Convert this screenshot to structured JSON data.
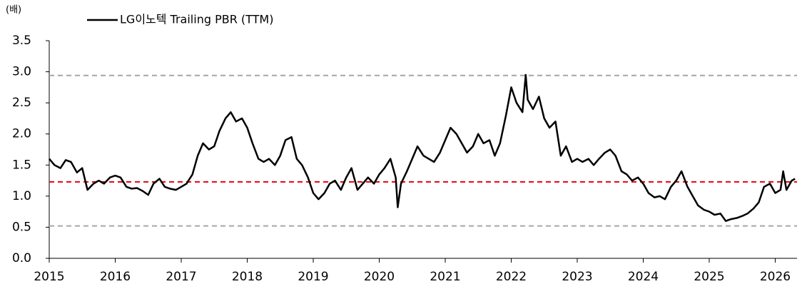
{
  "chart_data": {
    "type": "line",
    "y_label": "(배)",
    "xlim": [
      2015,
      2026.33
    ],
    "xticks": [
      2015,
      2016,
      2017,
      2018,
      2019,
      2020,
      2021,
      2022,
      2023,
      2024,
      2025,
      2026
    ],
    "ylim": [
      0,
      3.5
    ],
    "yticks": [
      {
        "value": 0,
        "label": "0.0"
      },
      0.5,
      {
        "value": 1,
        "label": "1.0"
      },
      1.5,
      {
        "value": 2,
        "label": "2.0"
      },
      2.5,
      {
        "value": 3,
        "label": "3.0"
      },
      3.5
    ],
    "reference_lines": [
      {
        "value": 2.94,
        "color": "#a6a6a6"
      },
      {
        "value": 1.23,
        "color": "#e60012"
      },
      {
        "value": 0.52,
        "color": "#a6a6a6"
      }
    ],
    "series": [
      {
        "name": "LG이노텍 Trailing PBR (TTM)",
        "color": "#000000",
        "x": [
          2015.0,
          2015.08,
          2015.17,
          2015.25,
          2015.33,
          2015.42,
          2015.5,
          2015.58,
          2015.67,
          2015.75,
          2015.83,
          2015.92,
          2016.0,
          2016.08,
          2016.17,
          2016.25,
          2016.33,
          2016.42,
          2016.5,
          2016.58,
          2016.67,
          2016.75,
          2016.83,
          2016.92,
          2017.0,
          2017.08,
          2017.17,
          2017.25,
          2017.33,
          2017.42,
          2017.5,
          2017.58,
          2017.67,
          2017.75,
          2017.83,
          2017.92,
          2018.0,
          2018.08,
          2018.17,
          2018.25,
          2018.33,
          2018.42,
          2018.5,
          2018.58,
          2018.67,
          2018.75,
          2018.83,
          2018.92,
          2019.0,
          2019.08,
          2019.17,
          2019.25,
          2019.33,
          2019.42,
          2019.5,
          2019.58,
          2019.67,
          2019.75,
          2019.83,
          2019.92,
          2020.0,
          2020.08,
          2020.17,
          2020.25,
          2020.28,
          2020.33,
          2020.42,
          2020.5,
          2020.58,
          2020.67,
          2020.75,
          2020.83,
          2020.92,
          2021.0,
          2021.08,
          2021.17,
          2021.25,
          2021.33,
          2021.42,
          2021.5,
          2021.58,
          2021.67,
          2021.75,
          2021.83,
          2021.92,
          2022.0,
          2022.08,
          2022.17,
          2022.22,
          2022.25,
          2022.33,
          2022.42,
          2022.5,
          2022.58,
          2022.67,
          2022.75,
          2022.83,
          2022.92,
          2023.0,
          2023.08,
          2023.17,
          2023.25,
          2023.33,
          2023.42,
          2023.5,
          2023.58,
          2023.67,
          2023.75,
          2023.83,
          2023.92,
          2024.0,
          2024.08,
          2024.17,
          2024.25,
          2024.33,
          2024.42,
          2024.5,
          2024.58,
          2024.67,
          2024.75,
          2024.83,
          2024.92,
          2025.0,
          2025.08,
          2025.17,
          2025.25,
          2025.33,
          2025.42,
          2025.5,
          2025.58,
          2025.67,
          2025.75,
          2025.83,
          2025.92,
          2026.0,
          2026.08,
          2026.12,
          2026.17,
          2026.25,
          2026.3
        ],
        "values": [
          1.6,
          1.5,
          1.45,
          1.58,
          1.55,
          1.38,
          1.45,
          1.1,
          1.2,
          1.25,
          1.2,
          1.3,
          1.33,
          1.3,
          1.15,
          1.12,
          1.13,
          1.08,
          1.02,
          1.2,
          1.28,
          1.15,
          1.12,
          1.1,
          1.15,
          1.2,
          1.35,
          1.65,
          1.85,
          1.75,
          1.8,
          2.05,
          2.25,
          2.35,
          2.2,
          2.25,
          2.1,
          1.85,
          1.6,
          1.55,
          1.6,
          1.5,
          1.65,
          1.9,
          1.95,
          1.6,
          1.5,
          1.3,
          1.05,
          0.95,
          1.05,
          1.2,
          1.25,
          1.1,
          1.3,
          1.45,
          1.1,
          1.2,
          1.3,
          1.2,
          1.35,
          1.45,
          1.6,
          1.3,
          0.82,
          1.2,
          1.4,
          1.6,
          1.8,
          1.65,
          1.6,
          1.55,
          1.7,
          1.9,
          2.1,
          2.0,
          1.85,
          1.7,
          1.8,
          2.0,
          1.85,
          1.9,
          1.65,
          1.85,
          2.3,
          2.75,
          2.5,
          2.35,
          2.95,
          2.55,
          2.4,
          2.6,
          2.25,
          2.1,
          2.2,
          1.65,
          1.8,
          1.55,
          1.6,
          1.55,
          1.6,
          1.5,
          1.6,
          1.7,
          1.75,
          1.65,
          1.4,
          1.35,
          1.25,
          1.3,
          1.2,
          1.05,
          0.98,
          1.0,
          0.95,
          1.15,
          1.25,
          1.4,
          1.15,
          1.0,
          0.85,
          0.78,
          0.75,
          0.7,
          0.72,
          0.6,
          0.63,
          0.65,
          0.68,
          0.72,
          0.8,
          0.9,
          1.15,
          1.2,
          1.05,
          1.1,
          1.4,
          1.1,
          1.25,
          1.28
        ]
      }
    ]
  }
}
